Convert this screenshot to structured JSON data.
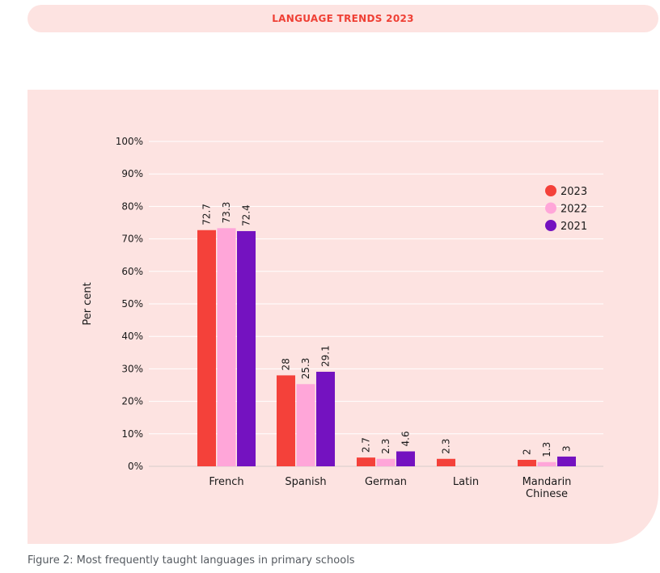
{
  "header": {
    "title": "LANGUAGE TRENDS 2023"
  },
  "caption": "Figure 2: Most frequently taught languages in primary schools",
  "colors": {
    "s2023": "#f4413a",
    "s2022": "#ffa6d9",
    "s2021": "#7412c0",
    "panel": "#fde3e1",
    "banner_text": "#ef4035"
  },
  "chart_data": {
    "type": "bar",
    "title": "",
    "xlabel": "",
    "ylabel": "Per cent",
    "ylim": [
      0,
      100
    ],
    "yticks": [
      "0%",
      "10%",
      "20%",
      "30%",
      "40%",
      "50%",
      "60%",
      "70%",
      "80%",
      "90%",
      "100%"
    ],
    "grid": true,
    "legend_position": "top-right",
    "categories": [
      "French",
      "Spanish",
      "German",
      "Latin",
      "Mandarin Chinese"
    ],
    "series": [
      {
        "name": "2023",
        "color": "#f4413a",
        "values": [
          72.7,
          28,
          2.7,
          2.3,
          2
        ],
        "labels": [
          "72.7",
          "28",
          "2.7",
          "2.3",
          "2"
        ]
      },
      {
        "name": "2022",
        "color": "#ffa6d9",
        "values": [
          73.3,
          25.3,
          2.3,
          null,
          1.3
        ],
        "labels": [
          "73.3",
          "25.3",
          "2.3",
          "",
          "1.3"
        ]
      },
      {
        "name": "2021",
        "color": "#7412c0",
        "values": [
          72.4,
          29.1,
          4.6,
          null,
          3
        ],
        "labels": [
          "72.4",
          "29.1",
          "4.6",
          "",
          "3"
        ]
      }
    ]
  }
}
